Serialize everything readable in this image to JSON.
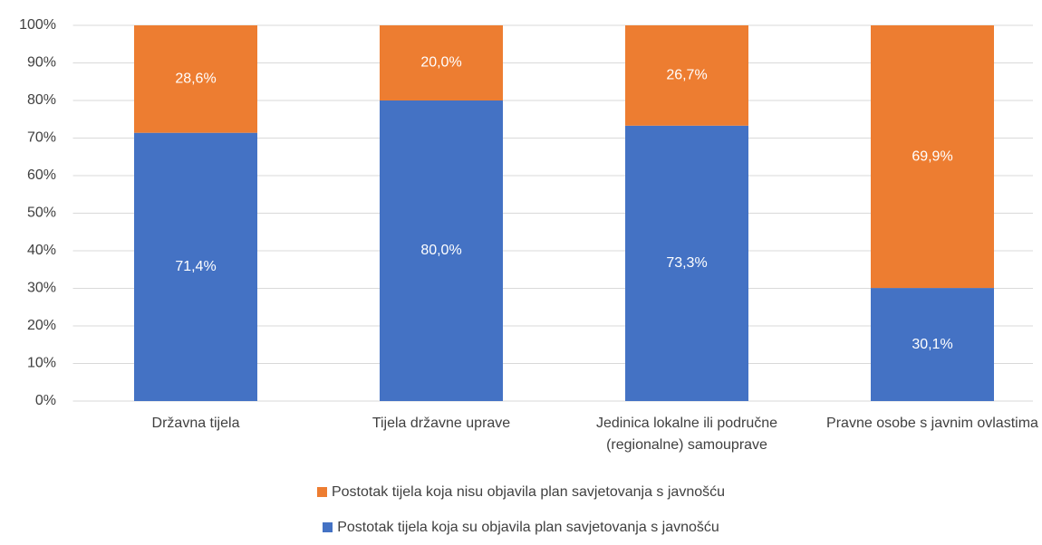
{
  "chart_data": {
    "type": "stacked_bar",
    "categories": [
      "Državna tijela",
      "Tijela državne uprave",
      "Jedinica lokalne ili područne (regionalne) samouprave",
      "Pravne osobe s javnim ovlastima"
    ],
    "series": [
      {
        "name": "Postotak tijela koja su objavila plan savjetovanja s javnošću",
        "color": "#4472c4",
        "values": [
          71.4,
          80.0,
          73.3,
          30.1
        ],
        "value_labels": [
          "71,4%",
          "80,0%",
          "73,3%",
          "30,1%"
        ]
      },
      {
        "name": "Postotak tijela koja nisu objavila plan savjetovanja s javnošću",
        "color": "#ed7d31",
        "values": [
          28.6,
          20.0,
          26.7,
          69.9
        ],
        "value_labels": [
          "28,6%",
          "20,0%",
          "26,7%",
          "69,9%"
        ]
      }
    ],
    "ylim": [
      0,
      100
    ],
    "yticks": [
      {
        "value": 0,
        "label": "0%"
      },
      {
        "value": 10,
        "label": "10%"
      },
      {
        "value": 20,
        "label": "20%"
      },
      {
        "value": 30,
        "label": "30%"
      },
      {
        "value": 40,
        "label": "40%"
      },
      {
        "value": 50,
        "label": "50%"
      },
      {
        "value": 60,
        "label": "60%"
      },
      {
        "value": 70,
        "label": "70%"
      },
      {
        "value": 80,
        "label": "80%"
      },
      {
        "value": 90,
        "label": "90%"
      },
      {
        "value": 100,
        "label": "100%"
      }
    ],
    "grid": true,
    "legend": "bottom"
  }
}
